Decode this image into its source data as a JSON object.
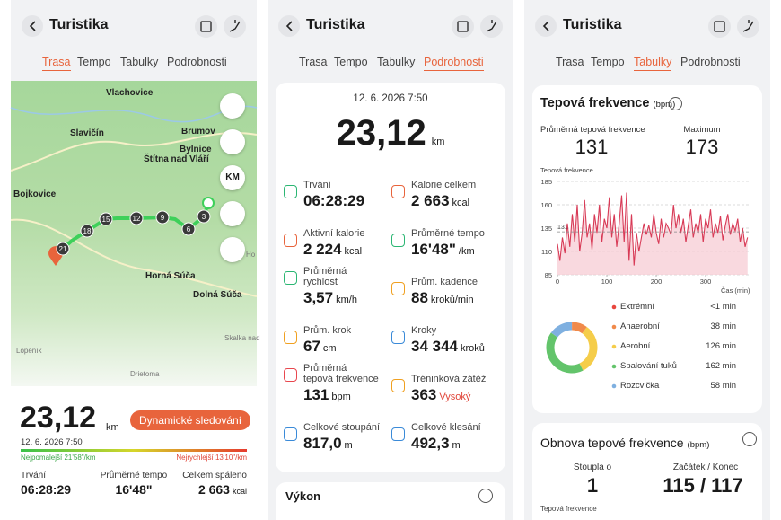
{
  "app": {
    "title": "Turistika",
    "tabs": [
      "Trasa",
      "Tempo",
      "Tabulky",
      "Podrobnosti"
    ]
  },
  "route": {
    "map_labels": [
      "Vlachovice",
      "Brumov",
      "Slavičín",
      "Bylnice",
      "Štítna nad Vláří",
      "Bojkovice",
      "Horná Súča",
      "Dolná Súča",
      "Lopeník",
      "Skalka nad",
      "Drietoma",
      "Ho"
    ],
    "km_markers": [
      "3",
      "6",
      "9",
      "12",
      "15",
      "18",
      "21"
    ],
    "map_button": "KM",
    "distance": "23,12",
    "distance_unit": "km",
    "button": "Dynamické sledování",
    "date": "12. 6. 2026 7:50",
    "slowest": "Nejpomalejší 21'58\"/km",
    "fastest": "Nejrychlejší 13'10\"/km",
    "stats": [
      {
        "label": "Trvání",
        "value": "06:28:29"
      },
      {
        "label": "Průměrné tempo",
        "value": "16'48\""
      },
      {
        "label": "Celkem spáleno",
        "value": "2 663",
        "unit": "kcal"
      }
    ]
  },
  "details": {
    "date": "12. 6. 2026 7:50",
    "distance": "23,12",
    "unit": "km",
    "items": [
      {
        "label": "Trvání",
        "value": "06:28:29"
      },
      {
        "label": "Kalorie celkem",
        "value": "2 663",
        "unit": "kcal"
      },
      {
        "label": "Aktivní kalorie",
        "value": "2 224",
        "unit": "kcal"
      },
      {
        "label": "Průměrné tempo",
        "value": "16'48\"",
        "unit": "/km"
      },
      {
        "label": "Průměrná rychlost",
        "value": "3,57",
        "unit": "km/h"
      },
      {
        "label": "Prům. kadence",
        "value": "88",
        "unit": "kroků/min"
      },
      {
        "label": "Prům. krok",
        "value": "67",
        "unit": "cm"
      },
      {
        "label": "Kroky",
        "value": "34 344",
        "unit": "kroků"
      },
      {
        "label": "Průměrná tepová frekvence",
        "value": "131",
        "unit": "bpm"
      },
      {
        "label": "Tréninková zátěž",
        "value": "363",
        "unit": "Vysoký"
      },
      {
        "label": "Celkové stoupání",
        "value": "817,0",
        "unit": "m"
      },
      {
        "label": "Celkové klesání",
        "value": "492,3",
        "unit": "m"
      }
    ],
    "next_card": "Výkon"
  },
  "charts": {
    "hr_title": "Tepová frekvence",
    "hr_unit": "(bpm)",
    "avg_label": "Průměrná tepová frekvence",
    "avg": "131",
    "max_label": "Maximum",
    "max": "173",
    "recovery_title": "Obnova tepové frekvence",
    "recovery_unit": "(bpm)",
    "rose_label": "Stoupla o",
    "rose": "1",
    "start_end_label": "Začátek / Konec",
    "start_end": "115 / 117",
    "recovery_axis": "Tepová frekvence"
  },
  "chart_data": [
    {
      "type": "line",
      "ylabel": "Tepová frekvence",
      "xlabel": "Čas (min)",
      "color": "#d83a56",
      "x": [
        0,
        5,
        10,
        15,
        20,
        25,
        30,
        35,
        40,
        45,
        50,
        55,
        60,
        65,
        70,
        75,
        80,
        85,
        90,
        95,
        100,
        105,
        110,
        115,
        120,
        125,
        130,
        135,
        140,
        145,
        150,
        155,
        160,
        165,
        170,
        175,
        180,
        185,
        190,
        195,
        200,
        205,
        210,
        215,
        220,
        225,
        230,
        235,
        240,
        245,
        250,
        255,
        260,
        265,
        270,
        275,
        280,
        285,
        290,
        295,
        300,
        305,
        310,
        315,
        320,
        325,
        330,
        335,
        340,
        345,
        350,
        355,
        360,
        365,
        370,
        375,
        380,
        385
      ],
      "values": [
        118,
        100,
        125,
        108,
        140,
        115,
        150,
        120,
        160,
        110,
        130,
        165,
        125,
        140,
        112,
        150,
        130,
        160,
        120,
        145,
        135,
        168,
        125,
        150,
        115,
        140,
        170,
        120,
        173,
        100,
        150,
        95,
        130,
        110,
        125,
        140,
        128,
        138,
        125,
        150,
        130,
        118,
        145,
        125,
        140,
        135,
        128,
        160,
        135,
        150,
        130,
        145,
        120,
        138,
        155,
        125,
        140,
        130,
        150,
        120,
        145,
        135,
        155,
        125,
        140,
        130,
        148,
        122,
        138,
        150,
        128,
        140,
        132,
        145,
        120,
        135,
        115,
        125
      ],
      "xlim": [
        0,
        390
      ],
      "xticks": [
        0,
        100,
        200,
        300
      ],
      "ylim": [
        85,
        185
      ],
      "yticks": [
        85,
        110,
        135,
        160,
        185
      ],
      "reference_line": 131,
      "grid": true
    },
    {
      "type": "donut",
      "categories": [
        "Extrémní",
        "Anaerobní",
        "Aerobní",
        "Spalování tuků",
        "Rozcvička"
      ],
      "values": [
        0.5,
        38,
        126,
        162,
        58
      ],
      "value_labels": [
        "<1 min",
        "38 min",
        "126 min",
        "162 min",
        "58 min"
      ],
      "colors": [
        "#e8473e",
        "#f08a4b",
        "#f5cd4a",
        "#63c46b",
        "#7fb0e0"
      ]
    }
  ]
}
